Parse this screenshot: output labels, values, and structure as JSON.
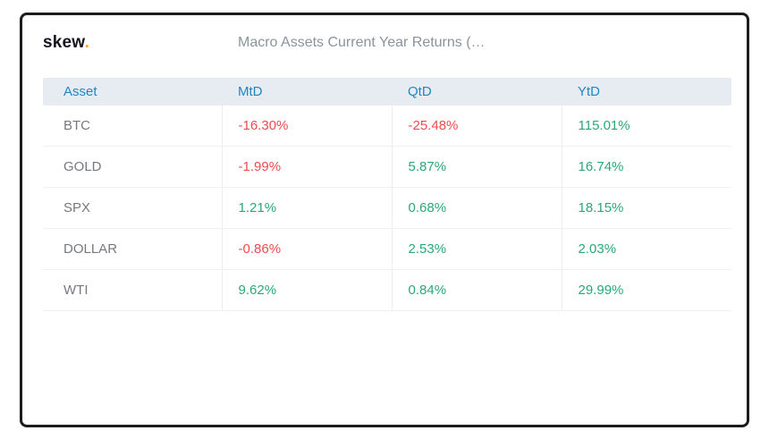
{
  "brand": {
    "name": "skew",
    "dot": "."
  },
  "header": {
    "title": "Macro Assets Current Year Returns (…"
  },
  "table": {
    "columns": [
      "Asset",
      "MtD",
      "QtD",
      "YtD"
    ],
    "rows": [
      {
        "asset": "BTC",
        "mtd": "-16.30%",
        "qtd": "-25.48%",
        "ytd": "115.01%"
      },
      {
        "asset": "GOLD",
        "mtd": "-1.99%",
        "qtd": "5.87%",
        "ytd": "16.74%"
      },
      {
        "asset": "SPX",
        "mtd": "1.21%",
        "qtd": "0.68%",
        "ytd": "18.15%"
      },
      {
        "asset": "DOLLAR",
        "mtd": "-0.86%",
        "qtd": "2.53%",
        "ytd": "2.03%"
      },
      {
        "asset": "WTI",
        "mtd": "9.62%",
        "qtd": "0.84%",
        "ytd": "29.99%"
      }
    ]
  },
  "colors": {
    "negative": "#ef4b4e",
    "positive": "#2aa876",
    "header_text": "#2187c2",
    "header_bg": "#e7ebf2",
    "brand_dot": "#f2a33c",
    "card_border": "#1c1c1c"
  }
}
